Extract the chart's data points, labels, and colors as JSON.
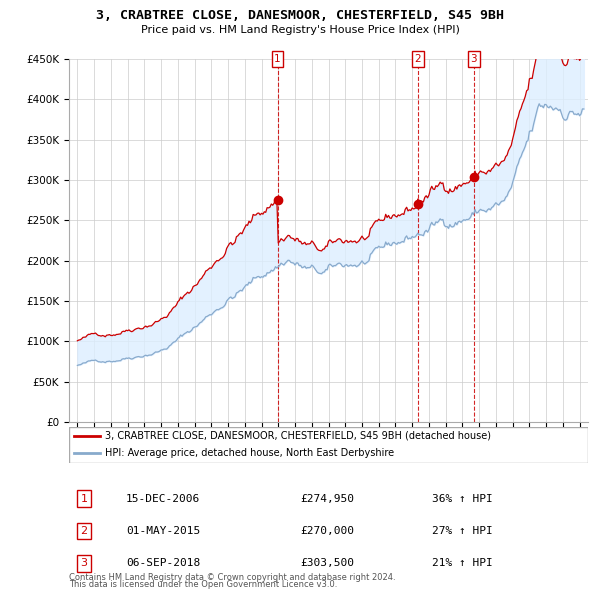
{
  "title": "3, CRABTREE CLOSE, DANESMOOR, CHESTERFIELD, S45 9BH",
  "subtitle": "Price paid vs. HM Land Registry's House Price Index (HPI)",
  "legend_red": "3, CRABTREE CLOSE, DANESMOOR, CHESTERFIELD, S45 9BH (detached house)",
  "legend_blue": "HPI: Average price, detached house, North East Derbyshire",
  "footer1": "Contains HM Land Registry data © Crown copyright and database right 2024.",
  "footer2": "This data is licensed under the Open Government Licence v3.0.",
  "transactions": [
    {
      "num": "1",
      "date": "15-DEC-2006",
      "price": "£274,950",
      "pct": "36% ↑ HPI"
    },
    {
      "num": "2",
      "date": "01-MAY-2015",
      "price": "£270,000",
      "pct": "27% ↑ HPI"
    },
    {
      "num": "3",
      "date": "06-SEP-2018",
      "price": "£303,500",
      "pct": "21% ↑ HPI"
    }
  ],
  "transaction_dates_decimal": [
    2006.958,
    2015.333,
    2018.667
  ],
  "transaction_prices": [
    274950,
    270000,
    303500
  ],
  "ylim": [
    0,
    450000
  ],
  "yticks": [
    0,
    50000,
    100000,
    150000,
    200000,
    250000,
    300000,
    350000,
    400000,
    450000
  ],
  "ytick_labels": [
    "£0",
    "£50K",
    "£100K",
    "£150K",
    "£200K",
    "£250K",
    "£300K",
    "£350K",
    "£400K",
    "£450K"
  ],
  "red_color": "#cc0000",
  "blue_color": "#88aacc",
  "fill_color": "#ddeeff",
  "grid_color": "#cccccc",
  "vline_color": "#cc0000"
}
